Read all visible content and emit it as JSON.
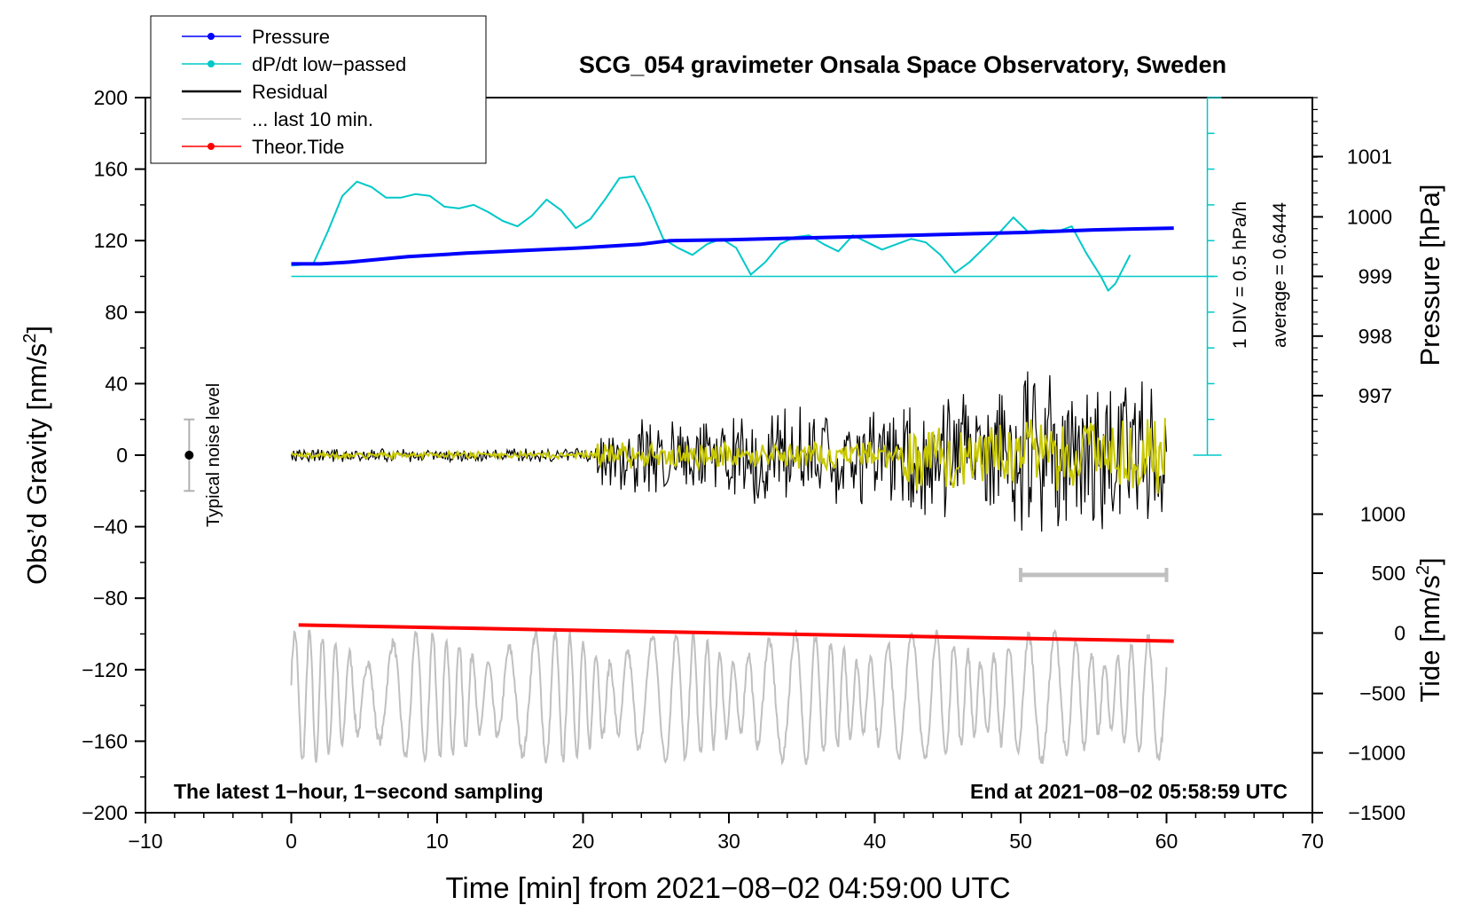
{
  "chart_data": {
    "type": "line",
    "title": "SCG_054 gravimeter Onsala Space Observatory, Sweden",
    "xlabel": "Time [min] from 2021−08−02 04:59:00 UTC",
    "ylabel_left_main": "Obs’d Gravity [nm/s",
    "ylabel_left_sup": "2",
    "ylabel_left_tail": "]",
    "ylabel_right_top": "Pressure [hPa]",
    "ylabel_right_bottom_main": "Tide [nm/s",
    "ylabel_right_bottom_sup": "2",
    "ylabel_right_bottom_tail": "]",
    "xlim": [
      -10,
      70
    ],
    "ylim": [
      -200,
      200
    ],
    "x_ticks": [
      -10,
      0,
      10,
      20,
      30,
      40,
      50,
      60,
      70
    ],
    "x_tick_labels": [
      "−10",
      "0",
      "10",
      "20",
      "30",
      "40",
      "50",
      "60",
      "70"
    ],
    "y_ticks": [
      200,
      160,
      120,
      80,
      40,
      0,
      -40,
      -80,
      -120,
      -160,
      -200
    ],
    "y_tick_labels": [
      "200",
      "160",
      "120",
      "80",
      "40",
      "0",
      "−40",
      "−80",
      "−120",
      "−160",
      "−200"
    ],
    "pressure_axis": {
      "ticks": [
        1001,
        1000,
        999,
        998,
        997
      ],
      "tick_labels": [
        "1001",
        "1000",
        "999",
        "998",
        "997"
      ],
      "gravity_equiv": [
        167,
        133.3,
        100,
        66.6,
        33.3
      ]
    },
    "tide_axis": {
      "ticks": [
        1000,
        500,
        0,
        -500,
        -1000,
        -1500
      ],
      "tick_labels": [
        "1000",
        "500",
        "0",
        "−500",
        "−1000",
        "−1500"
      ],
      "gravity_equiv": [
        -33,
        -66,
        -99.5,
        -133.3,
        -166.5,
        -200
      ]
    },
    "dpdt_scale": {
      "label1": "1 DIV = 0.5 hPa/h",
      "label2": "average = 0.6444",
      "x": 62.8,
      "y_range": [
        0,
        200
      ],
      "divisions": 10,
      "baseline_gravity": 100
    },
    "noise_bar": {
      "label": "Typical noise level",
      "x": -7,
      "y": 0,
      "low": -20,
      "high": 20
    },
    "last10_bar": {
      "x_start": 50,
      "x_end": 60,
      "y": -67
    },
    "footer_left": "The latest 1−hour, 1−second sampling",
    "footer_right": "End at 2021−08−02 05:58:59 UTC",
    "legend": [
      {
        "label": "Pressure",
        "color": "#0000ff",
        "marker": true
      },
      {
        "label": "dP/dt low−passed",
        "color": "#00c8c8",
        "marker": true
      },
      {
        "label": "Residual",
        "color": "#000000",
        "marker": false
      },
      {
        "label": "... last 10 min.",
        "color": "#c0c0c0",
        "marker": false
      },
      {
        "label": "Theor.Tide",
        "color": "#ff0000",
        "marker": true
      }
    ],
    "series": [
      {
        "name": "Pressure",
        "color": "#0000ff",
        "x": [
          0,
          2,
          4,
          8,
          12,
          16,
          20,
          24,
          26,
          30,
          35,
          40,
          45,
          50,
          55,
          60.5
        ],
        "y": [
          107,
          107,
          108,
          111,
          113,
          114.5,
          116,
          118,
          120,
          120.5,
          121.5,
          122.5,
          123.5,
          124.5,
          126,
          127
        ]
      },
      {
        "name": "dP/dt low−passed",
        "color": "#00c8c8",
        "x": [
          0,
          1.5,
          2.5,
          3.5,
          4.5,
          5.5,
          6.5,
          7.5,
          8.5,
          9.5,
          10.5,
          11.5,
          12.5,
          13.5,
          14.5,
          15.5,
          16.5,
          17.5,
          18.5,
          19.5,
          20.5,
          21.5,
          22.5,
          23.5,
          24.5,
          25.5,
          26.5,
          27.5,
          28.5,
          29.5,
          30.5,
          31.5,
          32.5,
          33.5,
          34.5,
          35.5,
          36.5,
          37.5,
          38.5,
          39.5,
          40.5,
          41.5,
          42.5,
          43.5,
          44.5,
          45.5,
          46.5,
          47.5,
          48.5,
          49.5,
          50.5,
          51.5,
          52.5,
          53.5,
          54.5,
          55.5,
          56,
          56.5,
          57.5
        ],
        "y": [
          106,
          107,
          125,
          145,
          153,
          150,
          144,
          144,
          146,
          145,
          139,
          138,
          140,
          136,
          131,
          128,
          134,
          143,
          137,
          127,
          132,
          143,
          155,
          156,
          140,
          121,
          116,
          112,
          118,
          121,
          116,
          101,
          108,
          118,
          122,
          123,
          118,
          114,
          123,
          119,
          115,
          118,
          121,
          119,
          112,
          102,
          108,
          116,
          124,
          133,
          125,
          126,
          125,
          128,
          113,
          100,
          92,
          96,
          112
        ]
      },
      {
        "name": "Residual",
        "color": "#000000",
        "segments": [
          {
            "x_start": 0,
            "x_end": 21,
            "amplitude": 4
          },
          {
            "x_start": 21,
            "x_end": 30,
            "amplitude": 22
          },
          {
            "x_start": 30,
            "x_end": 42,
            "amplitude": 28
          },
          {
            "x_start": 42,
            "x_end": 50,
            "amplitude": 38
          },
          {
            "x_start": 50,
            "x_end": 60,
            "amplitude": 48
          }
        ]
      },
      {
        "name": "Residual (filtered)",
        "color": "#c8c800",
        "segments": [
          {
            "x_start": 0,
            "x_end": 21,
            "amplitude": 2
          },
          {
            "x_start": 21,
            "x_end": 42,
            "amplitude": 8
          },
          {
            "x_start": 42,
            "x_end": 60,
            "amplitude": 22
          }
        ]
      },
      {
        "name": "... last 10 min.",
        "color": "#c0c0c0",
        "x_range": [
          0,
          60
        ],
        "center": -135,
        "amplitude": 30
      },
      {
        "name": "Theor.Tide",
        "color": "#ff0000",
        "x": [
          0.5,
          10,
          20,
          30,
          40,
          50,
          60.5
        ],
        "y": [
          -95,
          -96.5,
          -98,
          -99.5,
          -101,
          -102.5,
          -104
        ]
      }
    ]
  }
}
